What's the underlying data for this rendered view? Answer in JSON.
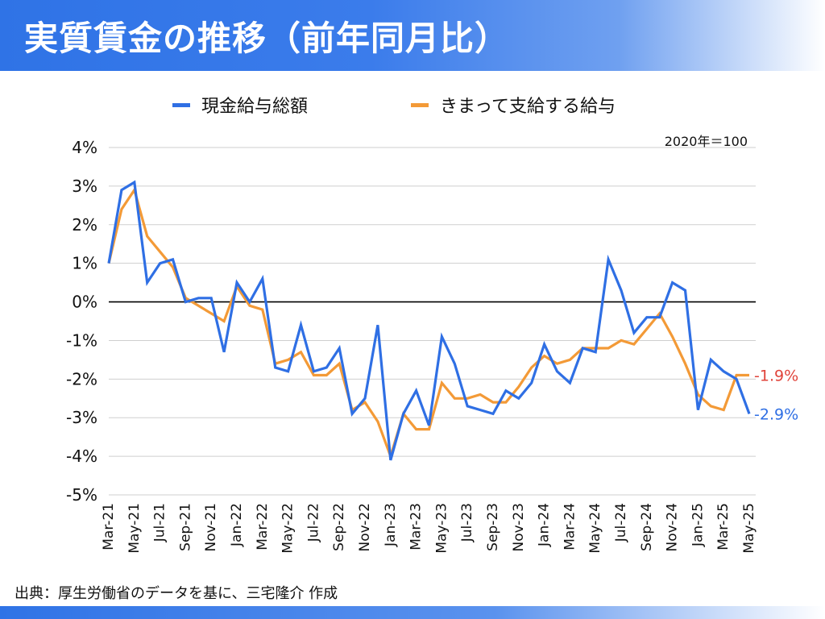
{
  "header": {
    "title": "実質賃金の推移（前年同月比）"
  },
  "legend_labels": {
    "total": "現金給与総額",
    "fixed": "きまって支給する給与"
  },
  "basis_note": "2020年＝100",
  "source": "出典：厚生労働省のデータを基に、三宅隆介 作成",
  "colors": {
    "header": "#2f73e6",
    "total": "#2f6fe4",
    "fixed": "#f39a37",
    "end_fixed": "#e0433a",
    "end_total": "#2f6fe4"
  },
  "chart_data": {
    "type": "line",
    "title": "実質賃金の推移（前年同月比）",
    "xlabel": "",
    "ylabel": "",
    "ylim": [
      -5,
      4
    ],
    "grid": true,
    "legend": "top",
    "y_ticks": [
      "4%",
      "3%",
      "2%",
      "1%",
      "0%",
      "-1%",
      "-2%",
      "-3%",
      "-4%",
      "-5%"
    ],
    "x": [
      "Mar-21",
      "Apr-21",
      "May-21",
      "Jun-21",
      "Jul-21",
      "Aug-21",
      "Sep-21",
      "Oct-21",
      "Nov-21",
      "Dec-21",
      "Jan-22",
      "Feb-22",
      "Mar-22",
      "Apr-22",
      "May-22",
      "Jun-22",
      "Jul-22",
      "Aug-22",
      "Sep-22",
      "Oct-22",
      "Nov-22",
      "Dec-22",
      "Jan-23",
      "Feb-23",
      "Mar-23",
      "Apr-23",
      "May-23",
      "Jun-23",
      "Jul-23",
      "Aug-23",
      "Sep-23",
      "Oct-23",
      "Nov-23",
      "Dec-23",
      "Jan-24",
      "Feb-24",
      "Mar-24",
      "Apr-24",
      "May-24",
      "Jun-24",
      "Jul-24",
      "Aug-24",
      "Sep-24",
      "Oct-24",
      "Nov-24",
      "Dec-24",
      "Jan-25",
      "Feb-25",
      "Mar-25",
      "Apr-25",
      "May-25"
    ],
    "x_tick_labels": [
      "Mar-21",
      "May-21",
      "Jul-21",
      "Sep-21",
      "Nov-21",
      "Jan-22",
      "Mar-22",
      "May-22",
      "Jul-22",
      "Sep-22",
      "Nov-22",
      "Jan-23",
      "Mar-23",
      "May-23",
      "Jul-23",
      "Sep-23",
      "Nov-23",
      "Jan-24",
      "Mar-24",
      "May-24",
      "Jul-24",
      "Sep-24",
      "Nov-24",
      "Jan-25",
      "Mar-25",
      "May-25"
    ],
    "series": [
      {
        "name": "現金給与総額",
        "values": [
          1.0,
          2.9,
          3.1,
          0.5,
          1.0,
          1.1,
          0.0,
          0.1,
          0.1,
          -1.3,
          0.5,
          0.0,
          0.6,
          -1.7,
          -1.8,
          -0.6,
          -1.8,
          -1.7,
          -1.2,
          -2.9,
          -2.5,
          -0.6,
          -4.1,
          -2.9,
          -2.3,
          -3.2,
          -0.9,
          -1.6,
          -2.7,
          -2.8,
          -2.9,
          -2.3,
          -2.5,
          -2.1,
          -1.1,
          -1.8,
          -2.1,
          -1.2,
          -1.3,
          1.1,
          0.3,
          -0.8,
          -0.4,
          -0.4,
          0.5,
          0.3,
          -2.8,
          -1.5,
          -1.8,
          -2.0,
          -2.9
        ]
      },
      {
        "name": "きまって支給する給与",
        "values": [
          1.0,
          2.4,
          2.9,
          1.7,
          1.3,
          0.9,
          0.1,
          -0.1,
          -0.3,
          -0.5,
          0.4,
          -0.1,
          -0.2,
          -1.6,
          -1.5,
          -1.3,
          -1.9,
          -1.9,
          -1.6,
          -2.8,
          -2.6,
          -3.1,
          -4.0,
          -2.9,
          -3.3,
          -3.3,
          -2.1,
          -2.5,
          -2.5,
          -2.4,
          -2.6,
          -2.6,
          -2.2,
          -1.7,
          -1.4,
          -1.6,
          -1.5,
          -1.2,
          -1.2,
          -1.2,
          -1.0,
          -1.1,
          -0.7,
          -0.3,
          -0.9,
          -1.6,
          -2.4,
          -2.7,
          -2.8,
          -1.9,
          -1.9
        ]
      }
    ],
    "end_labels": {
      "fixed": "-1.9%",
      "total": "-2.9%"
    }
  }
}
